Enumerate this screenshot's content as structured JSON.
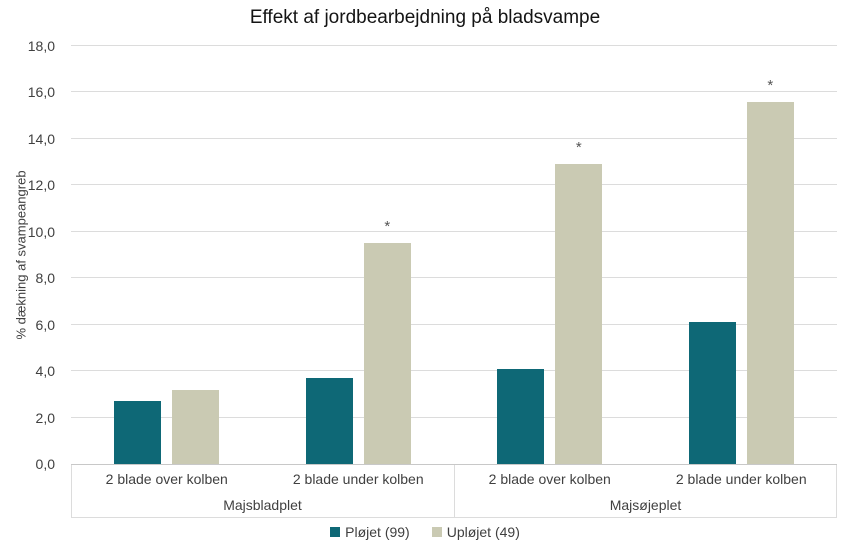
{
  "chart_data": {
    "type": "bar",
    "title": "Effekt af jordbearbejdning på bladsvampe",
    "ylabel": "% dækning af svampeangreb",
    "xlabel": "",
    "ylim": [
      0,
      18
    ],
    "ytick_interval": 2,
    "decimal_separator": ",",
    "grid": true,
    "legend_position": "bottom",
    "groups": [
      {
        "label": "Majsbladplet",
        "categories": [
          "2 blade over kolben",
          "2 blade under kolben"
        ]
      },
      {
        "label": "Majsøjeplet",
        "categories": [
          "2 blade over kolben",
          "2 blade under kolben"
        ]
      }
    ],
    "series": [
      {
        "name": "Pløjet (99)",
        "color": "#0E6876",
        "values": [
          2.7,
          3.7,
          4.1,
          6.1
        ]
      },
      {
        "name": "Upløjet (49)",
        "color": "#CACAB3",
        "values": [
          3.2,
          9.5,
          12.9,
          15.6
        ]
      }
    ],
    "significance_marks": {
      "symbol": "*",
      "series": "Upløjet (49)",
      "categories_with_mark": [
        1,
        2,
        3
      ]
    }
  }
}
